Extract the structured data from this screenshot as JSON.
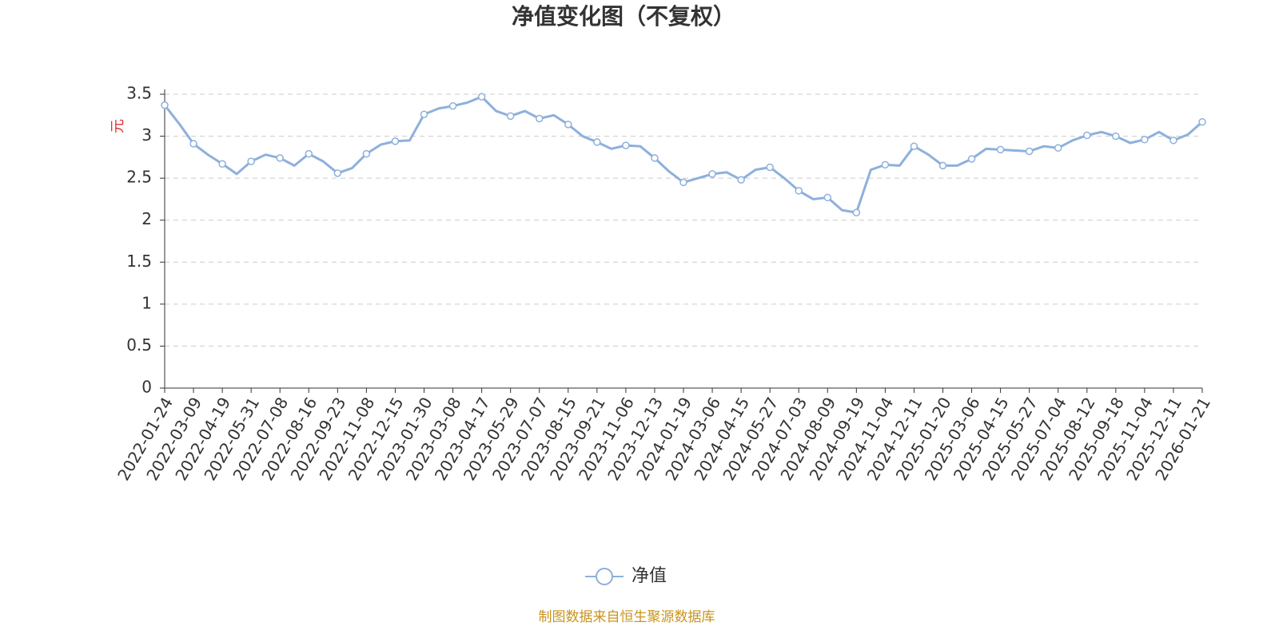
{
  "chart_data": {
    "type": "line",
    "title": "净值变化图（不复权）",
    "y_label": "元",
    "source": "制图数据来自恒生聚源数据库",
    "categories": [
      "2022-01-24",
      null,
      "2022-03-09",
      null,
      "2022-04-19",
      null,
      "2022-05-31",
      null,
      "2022-07-08",
      null,
      "2022-08-16",
      null,
      "2022-09-23",
      null,
      "2022-11-08",
      null,
      "2022-12-15",
      null,
      "2023-01-30",
      null,
      "2023-03-08",
      null,
      "2023-04-17",
      null,
      "2023-05-29",
      null,
      "2023-07-07",
      null,
      "2023-08-15",
      null,
      "2023-09-21",
      null,
      "2023-11-06",
      null,
      "2023-12-13",
      null,
      "2024-01-19",
      null,
      "2024-03-06",
      null,
      "2024-04-15",
      null,
      "2024-05-27",
      null,
      "2024-07-03",
      null,
      "2024-08-09",
      null,
      "2024-09-19",
      null,
      "2024-11-04",
      null,
      "2024-12-11",
      null,
      "2025-01-20",
      null,
      "2025-03-06",
      null,
      "2025-04-15",
      null,
      "2025-05-27",
      null,
      "2025-07-04",
      null,
      "2025-08-12",
      null,
      "2025-09-18",
      null,
      "2025-11-04",
      null,
      "2025-12-11",
      null,
      "2026-01-21"
    ],
    "series": [
      {
        "name": "净值",
        "color": "#8eb0dc",
        "values": [
          3.37,
          3.15,
          2.91,
          2.78,
          2.67,
          2.55,
          2.7,
          2.78,
          2.74,
          2.65,
          2.79,
          2.7,
          2.56,
          2.62,
          2.79,
          2.9,
          2.94,
          2.95,
          3.26,
          3.33,
          3.36,
          3.4,
          3.47,
          3.3,
          3.24,
          3.3,
          3.21,
          3.25,
          3.14,
          3.0,
          2.93,
          2.85,
          2.89,
          2.88,
          2.74,
          2.58,
          2.45,
          2.5,
          2.55,
          2.57,
          2.48,
          2.6,
          2.63,
          2.5,
          2.35,
          2.25,
          2.27,
          2.12,
          2.09,
          2.6,
          2.66,
          2.65,
          2.88,
          2.78,
          2.65,
          2.65,
          2.73,
          2.85,
          2.84,
          2.83,
          2.82,
          2.88,
          2.86,
          2.95,
          3.01,
          3.05,
          3.0,
          2.92,
          2.96,
          3.05,
          2.95,
          3.02,
          3.17
        ]
      }
    ],
    "ylim": [
      0,
      3.5
    ],
    "yticks": [
      0,
      0.5,
      1,
      1.5,
      2,
      2.5,
      3,
      3.5
    ],
    "grid": true,
    "legend": "bottom"
  }
}
